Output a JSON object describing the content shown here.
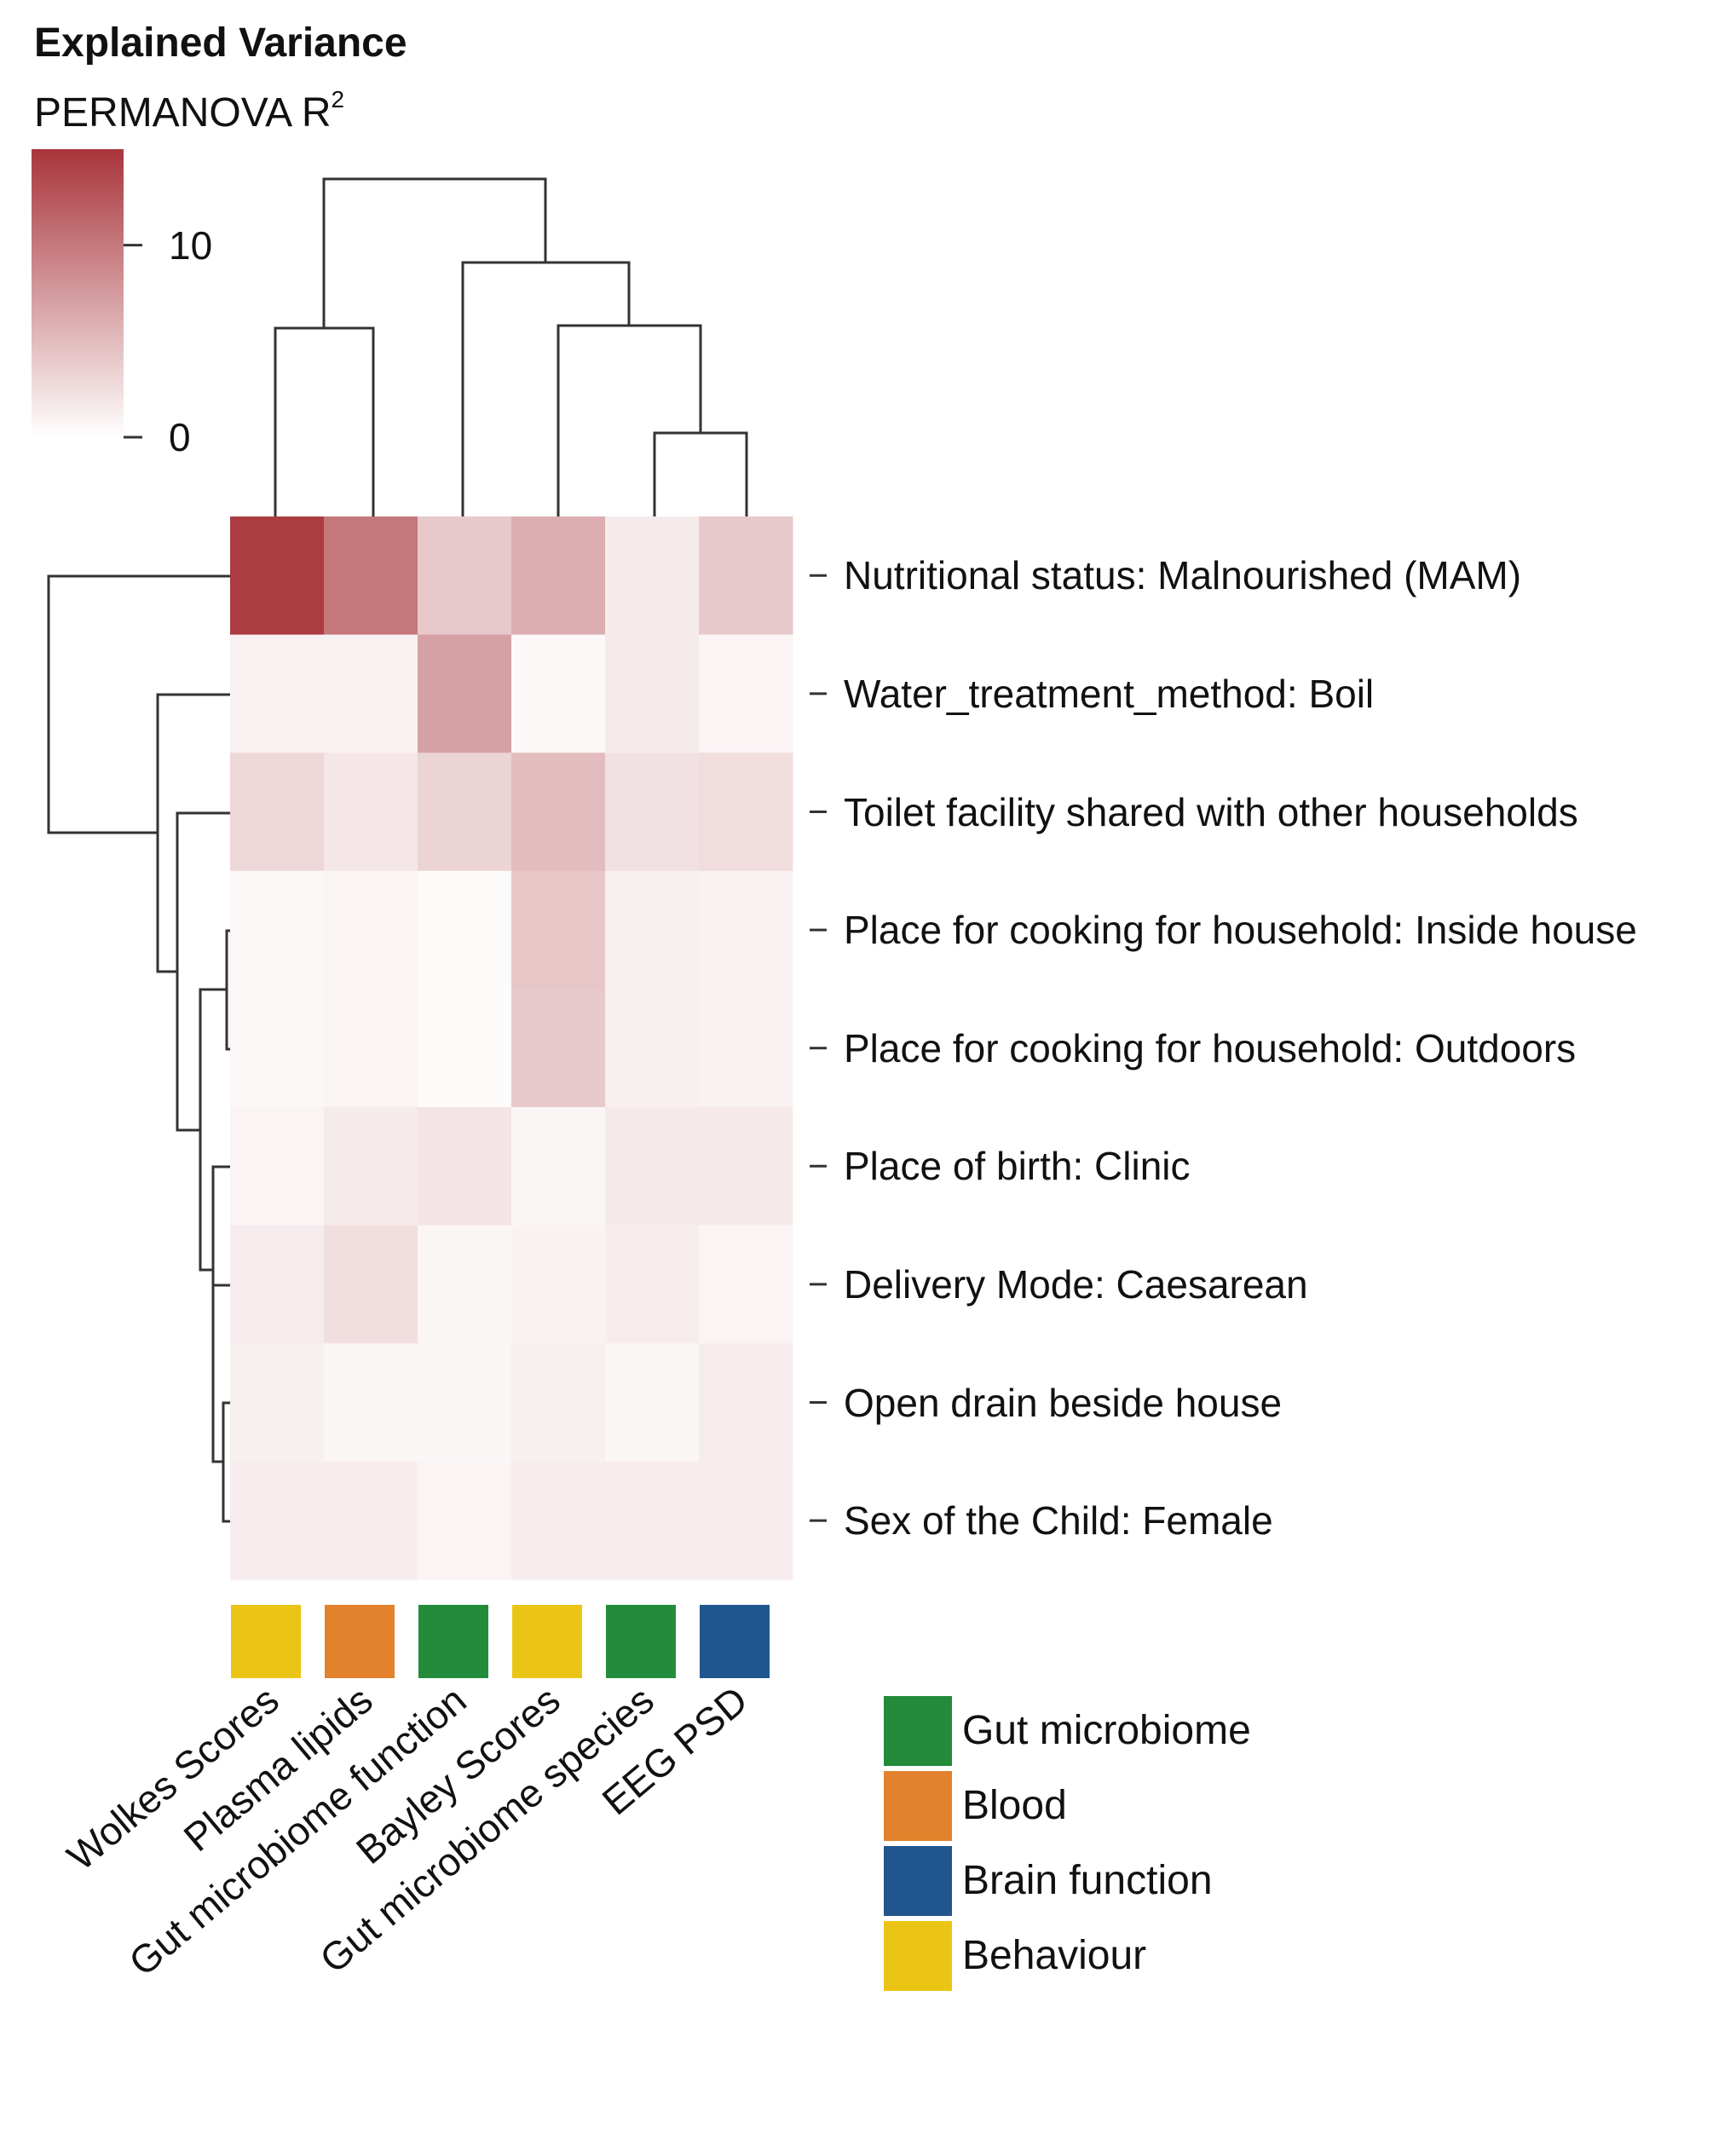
{
  "legend": {
    "title": "Explained Variance",
    "subtitle": "PERMANOVA R",
    "subtitle_sup": "2",
    "ticks": [
      {
        "value": 10,
        "label": "10"
      },
      {
        "value": 0,
        "label": "0"
      }
    ],
    "range": [
      0,
      15
    ],
    "color_low": "#ffffff",
    "color_high": "#a8353b"
  },
  "category_legend": [
    {
      "label": "Gut microbiome",
      "color": "#238b3a"
    },
    {
      "label": "Blood",
      "color": "#e2822c"
    },
    {
      "label": "Brain function",
      "color": "#21558e"
    },
    {
      "label": "Behaviour",
      "color": "#ebc515"
    }
  ],
  "chart_data": {
    "type": "heatmap",
    "title": "Explained Variance",
    "value_label": "PERMANOVA R2",
    "columns": [
      "Wolkes Scores",
      "Plasma lipids",
      "Gut microbiome function",
      "Bayley Scores",
      "Gut microbiome species",
      "EEG PSD"
    ],
    "column_categories": [
      "Behaviour",
      "Blood",
      "Gut microbiome",
      "Behaviour",
      "Gut microbiome",
      "Brain function"
    ],
    "rows": [
      "Nutritional status: Malnourished (MAM)",
      "Water_treatment_method: Boil",
      "Toilet facility shared with other households",
      "Place for cooking for household: Inside house",
      "Place for cooking for household: Outdoors",
      "Place of birth: Clinic",
      "Delivery Mode: Caesarean",
      "Open drain beside house",
      "Sex of the Child: Female"
    ],
    "values": [
      [
        14.5,
        10.0,
        4.0,
        6.0,
        1.5,
        4.0
      ],
      [
        1.0,
        1.0,
        7.0,
        0.5,
        1.5,
        0.8
      ],
      [
        3.0,
        1.8,
        3.2,
        5.0,
        2.2,
        2.5
      ],
      [
        0.6,
        0.8,
        0.4,
        4.2,
        1.2,
        1.0
      ],
      [
        0.6,
        0.8,
        0.4,
        4.0,
        1.2,
        1.0
      ],
      [
        0.8,
        1.5,
        2.0,
        0.7,
        1.6,
        1.6
      ],
      [
        1.4,
        2.4,
        0.7,
        1.0,
        1.3,
        0.8
      ],
      [
        1.2,
        0.7,
        0.7,
        1.2,
        0.7,
        1.4
      ],
      [
        1.3,
        1.3,
        0.8,
        1.3,
        1.3,
        1.3
      ]
    ],
    "color_range": [
      0,
      15
    ]
  }
}
